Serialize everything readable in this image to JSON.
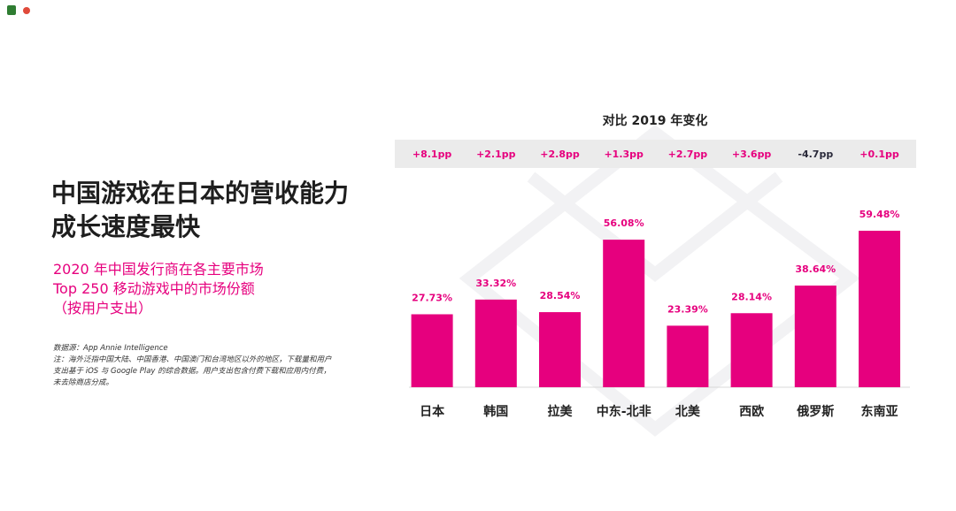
{
  "chart_data": {
    "type": "bar",
    "title": "中国游戏在日本的营收能力成长速度最快",
    "subtitle": [
      "2020 年中国发行商在各主要市场",
      "Top 250 移动游戏中的市场份额",
      "（按用户支出）"
    ],
    "source": "数据源：App Annie Intelligence",
    "note": "注：海外泛指中国大陆、中国香港、中国澳门和台湾地区以外的地区，下载量和用户支出基于 iOS 与 Google Play 的综合数据。用户支出包含付费下载和应用内付费，未去除商店分成。",
    "categories": [
      "日本",
      "韩国",
      "拉美",
      "中东-北非",
      "北美",
      "西欧",
      "俄罗斯",
      "东南亚"
    ],
    "values": [
      27.73,
      33.32,
      28.54,
      56.08,
      23.39,
      28.14,
      38.64,
      59.48
    ],
    "value_labels": [
      "27.73%",
      "33.32%",
      "28.54%",
      "56.08%",
      "23.39%",
      "28.14%",
      "38.64%",
      "59.48%"
    ],
    "color": "#e6007e",
    "change_title": "对比 2019 年变化",
    "change_labels": [
      "+8.1pp",
      "+2.1pp",
      "+2.8pp",
      "+1.3pp",
      "+2.7pp",
      "+3.6pp",
      "-4.7pp",
      "+0.1pp"
    ]
  }
}
